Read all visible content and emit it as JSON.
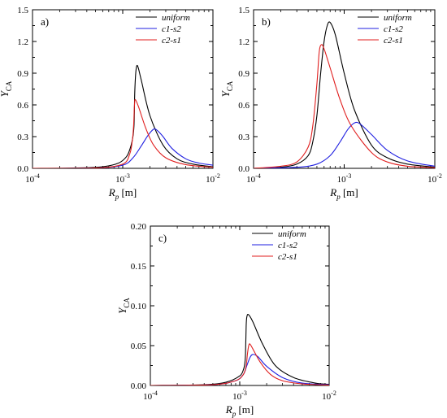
{
  "figure": {
    "line_colors": {
      "uniform": "#000000",
      "c1-s2": "#1f1fe0",
      "c2-s1": "#e01f1f"
    }
  },
  "chart_data": [
    {
      "type": "line",
      "panel_label": "a)",
      "xlabel": {
        "main": "R",
        "sub": "p",
        "unit": " [m]"
      },
      "ylabel": {
        "main": "Y",
        "sub": "CA"
      },
      "xscale": "log",
      "xlim": [
        0.0001,
        0.01
      ],
      "ylim": [
        0,
        1.5
      ],
      "x_ticks": [
        {
          "base": "10",
          "exp": "-4",
          "value": 0.0001
        },
        {
          "base": "10",
          "exp": "-3",
          "value": 0.001
        },
        {
          "base": "10",
          "exp": "-2",
          "value": 0.01
        }
      ],
      "y_ticks": [
        {
          "label": "0.0",
          "value": 0
        },
        {
          "label": "0.3",
          "value": 0.3
        },
        {
          "label": "0.6",
          "value": 0.6
        },
        {
          "label": "0.9",
          "value": 0.9
        },
        {
          "label": "1.2",
          "value": 1.2
        },
        {
          "label": "1.5",
          "value": 1.5
        }
      ],
      "legend_position": "top-right",
      "series": [
        {
          "name": "uniform",
          "x": [
            0.0001,
            0.0003,
            0.0006,
            0.0009,
            0.0011,
            0.0012,
            0.00128,
            0.00132,
            0.00134,
            0.00136,
            0.0014,
            0.00146,
            0.0016,
            0.002,
            0.0028,
            0.004,
            0.006,
            0.01
          ],
          "y": [
            0.0,
            0.003,
            0.015,
            0.05,
            0.11,
            0.18,
            0.27,
            0.35,
            0.45,
            0.72,
            0.92,
            0.97,
            0.84,
            0.5,
            0.22,
            0.09,
            0.04,
            0.015
          ]
        },
        {
          "name": "c1-s2",
          "x": [
            0.0001,
            0.0005,
            0.001,
            0.0013,
            0.0016,
            0.0019,
            0.0022,
            0.0024,
            0.0028,
            0.0035,
            0.005,
            0.007,
            0.01
          ],
          "y": [
            0.0,
            0.003,
            0.03,
            0.1,
            0.21,
            0.31,
            0.37,
            0.36,
            0.3,
            0.19,
            0.09,
            0.05,
            0.03
          ]
        },
        {
          "name": "c2-s1",
          "x": [
            0.0001,
            0.0005,
            0.001,
            0.0012,
            0.00128,
            0.00132,
            0.00135,
            0.00138,
            0.0015,
            0.0018,
            0.0022,
            0.003,
            0.005,
            0.01
          ],
          "y": [
            0.0,
            0.003,
            0.04,
            0.14,
            0.27,
            0.4,
            0.6,
            0.65,
            0.58,
            0.38,
            0.22,
            0.1,
            0.035,
            0.01
          ]
        }
      ]
    },
    {
      "type": "line",
      "panel_label": "b)",
      "xlabel": {
        "main": "R",
        "sub": "p",
        "unit": " [m]"
      },
      "ylabel": {
        "main": "Y",
        "sub": "CA"
      },
      "xscale": "log",
      "xlim": [
        0.0001,
        0.01
      ],
      "ylim": [
        0,
        1.5
      ],
      "x_ticks": [
        {
          "base": "10",
          "exp": "-4",
          "value": 0.0001
        },
        {
          "base": "10",
          "exp": "-3",
          "value": 0.001
        },
        {
          "base": "10",
          "exp": "-2",
          "value": 0.01
        }
      ],
      "y_ticks": [
        {
          "label": "0.0",
          "value": 0
        },
        {
          "label": "0.3",
          "value": 0.3
        },
        {
          "label": "0.6",
          "value": 0.6
        },
        {
          "label": "0.9",
          "value": 0.9
        },
        {
          "label": "1.2",
          "value": 1.2
        },
        {
          "label": "1.5",
          "value": 1.5
        }
      ],
      "legend_position": "top-right",
      "series": [
        {
          "name": "uniform",
          "x": [
            0.0001,
            0.0002,
            0.0003,
            0.0004,
            0.00045,
            0.0005,
            0.00055,
            0.0006,
            0.00065,
            0.0007,
            0.0008,
            0.001,
            0.0013,
            0.002,
            0.003,
            0.005,
            0.01
          ],
          "y": [
            0.0,
            0.01,
            0.04,
            0.12,
            0.25,
            0.5,
            0.9,
            1.2,
            1.35,
            1.38,
            1.26,
            0.9,
            0.55,
            0.22,
            0.1,
            0.04,
            0.012
          ]
        },
        {
          "name": "c1-s2",
          "x": [
            0.0001,
            0.0003,
            0.0005,
            0.0007,
            0.0009,
            0.0011,
            0.0013,
            0.0015,
            0.002,
            0.003,
            0.005,
            0.01
          ],
          "y": [
            0.0,
            0.01,
            0.04,
            0.12,
            0.25,
            0.37,
            0.43,
            0.42,
            0.32,
            0.17,
            0.07,
            0.02
          ]
        },
        {
          "name": "c2-s1",
          "x": [
            0.0001,
            0.0002,
            0.0003,
            0.0004,
            0.00045,
            0.0005,
            0.00053,
            0.00056,
            0.0006,
            0.0007,
            0.0009,
            0.0012,
            0.002,
            0.003,
            0.005,
            0.01
          ],
          "y": [
            0.0,
            0.02,
            0.06,
            0.2,
            0.4,
            0.8,
            1.1,
            1.17,
            1.13,
            0.95,
            0.65,
            0.4,
            0.15,
            0.06,
            0.02,
            0.006
          ]
        }
      ]
    },
    {
      "type": "line",
      "panel_label": "c)",
      "xlabel": {
        "main": "R",
        "sub": "p",
        "unit": " [m]"
      },
      "ylabel": {
        "main": "Y",
        "sub": "CA"
      },
      "xscale": "log",
      "xlim": [
        0.0001,
        0.01
      ],
      "ylim": [
        0,
        0.2
      ],
      "x_ticks": [
        {
          "base": "10",
          "exp": "-4",
          "value": 0.0001
        },
        {
          "base": "10",
          "exp": "-3",
          "value": 0.001
        },
        {
          "base": "10",
          "exp": "-2",
          "value": 0.01
        }
      ],
      "y_ticks": [
        {
          "label": "0.00",
          "value": 0
        },
        {
          "label": "0.05",
          "value": 0.05
        },
        {
          "label": "0.10",
          "value": 0.1
        },
        {
          "label": "0.15",
          "value": 0.15
        },
        {
          "label": "0.20",
          "value": 0.2
        }
      ],
      "legend_position": "top-right",
      "series": [
        {
          "name": "uniform",
          "x": [
            0.0001,
            0.0004,
            0.0007,
            0.001,
            0.0011,
            0.00114,
            0.00116,
            0.00118,
            0.0012,
            0.00125,
            0.0014,
            0.0018,
            0.0025,
            0.004,
            0.007,
            0.01
          ],
          "y": [
            0.0,
            0.001,
            0.004,
            0.012,
            0.02,
            0.028,
            0.04,
            0.075,
            0.086,
            0.089,
            0.08,
            0.052,
            0.025,
            0.01,
            0.003,
            0.0015
          ]
        },
        {
          "name": "c1-s2",
          "x": [
            0.0001,
            0.0005,
            0.0009,
            0.0011,
            0.0012,
            0.0013,
            0.0014,
            0.0016,
            0.002,
            0.003,
            0.005,
            0.01
          ],
          "y": [
            0.0,
            0.001,
            0.006,
            0.014,
            0.025,
            0.035,
            0.039,
            0.036,
            0.024,
            0.01,
            0.003,
            0.001
          ]
        },
        {
          "name": "c2-s1",
          "x": [
            0.0001,
            0.0005,
            0.0009,
            0.0011,
            0.00118,
            0.00122,
            0.00126,
            0.0013,
            0.0014,
            0.0017,
            0.0022,
            0.003,
            0.005,
            0.01
          ],
          "y": [
            0.0,
            0.001,
            0.006,
            0.014,
            0.025,
            0.04,
            0.05,
            0.052,
            0.046,
            0.029,
            0.014,
            0.006,
            0.002,
            0.0005
          ]
        }
      ]
    }
  ]
}
